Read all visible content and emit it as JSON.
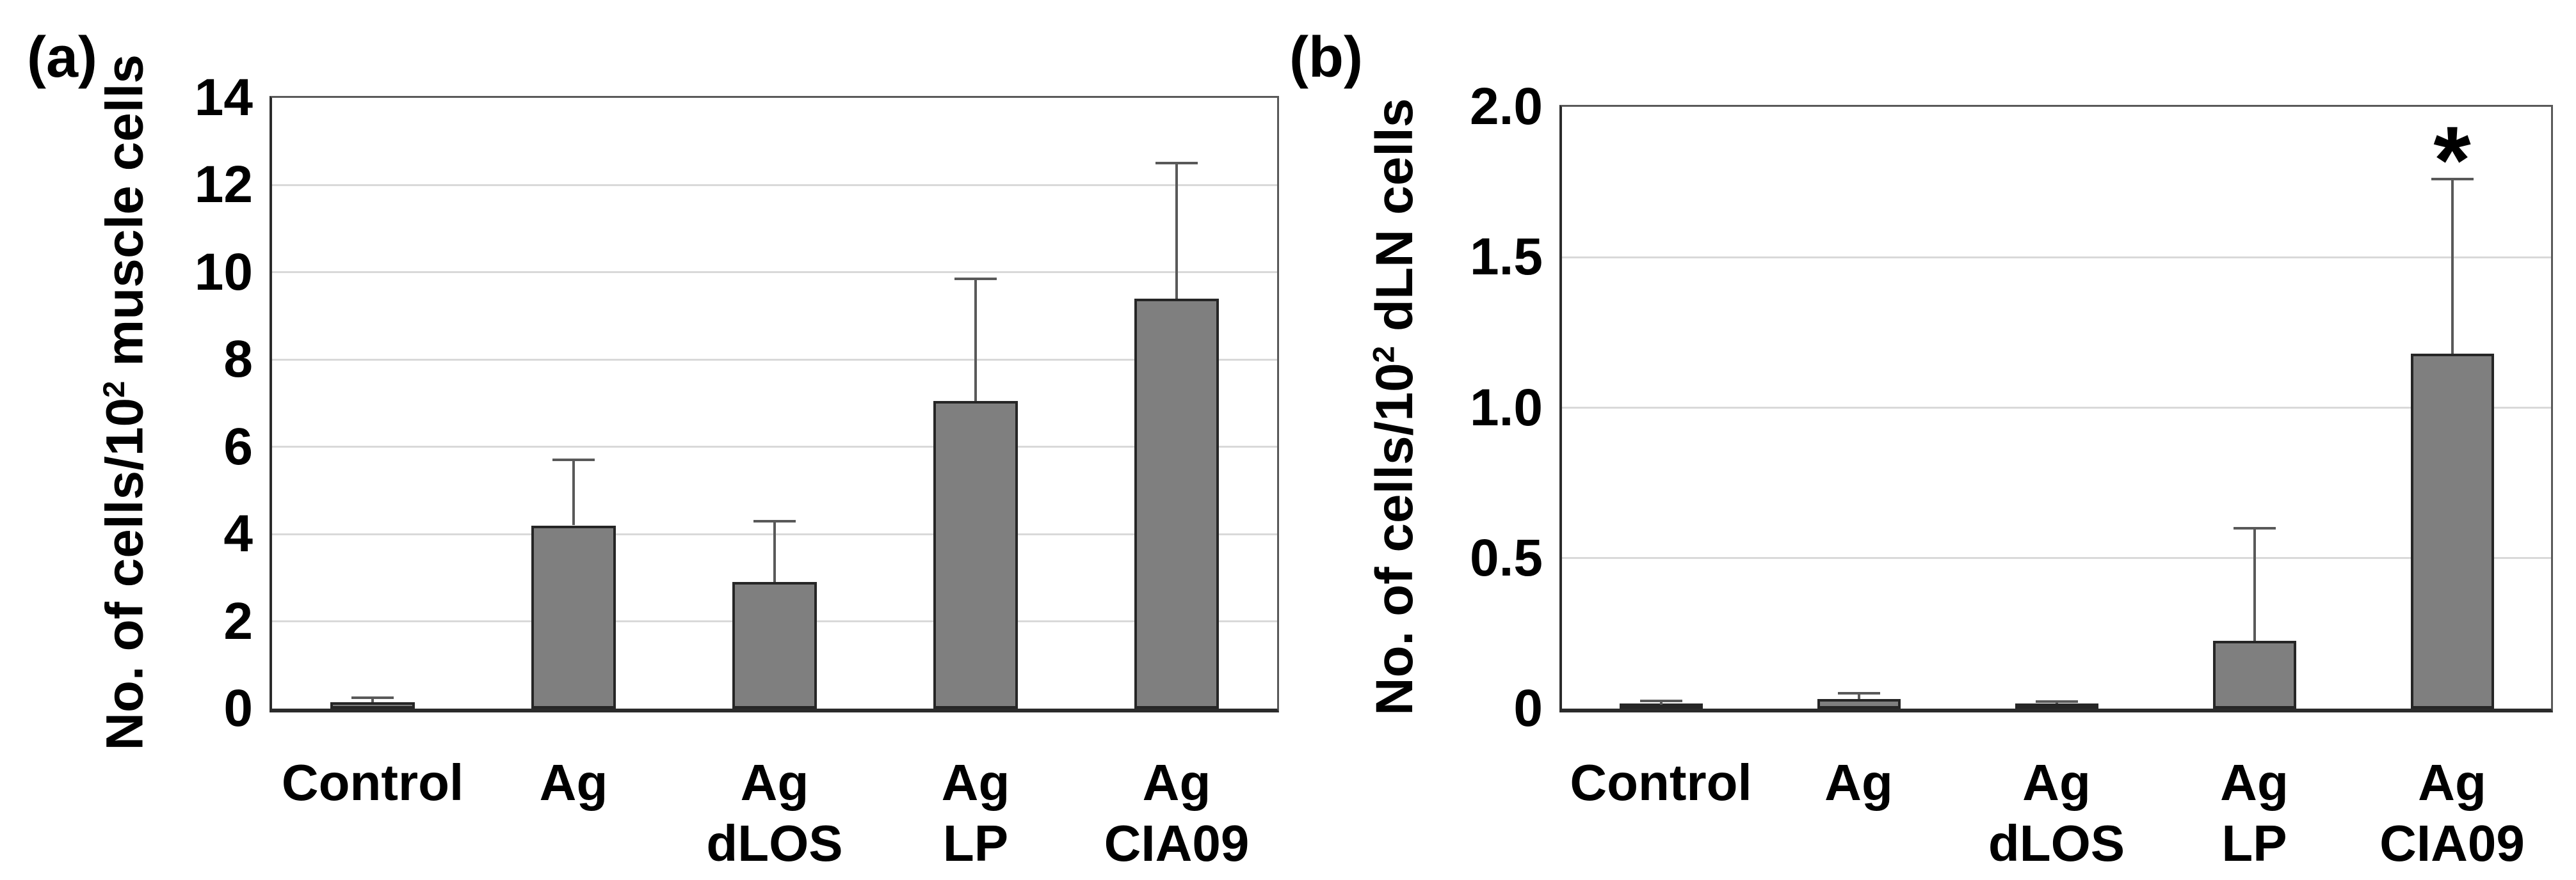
{
  "figure": {
    "background": "#ffffff"
  },
  "style": {
    "bar_fill": "#7f7f7f",
    "bar_border": "#262626",
    "error_color": "#595959",
    "grid_color": "#d9d9d9",
    "frame_color": "#595959",
    "axis_color": "#2b2b2b",
    "text_color": "#000000"
  },
  "chart_data": [
    {
      "id": "a",
      "type": "bar",
      "panel_label": "(a)",
      "ylabel": "No. of cells/10² muscle cells",
      "ylabel_parts": {
        "pre": "No. of cells/10",
        "sup": "2",
        "post": " muscle cells"
      },
      "categories": [
        [
          "Control"
        ],
        [
          "Ag"
        ],
        [
          "Ag",
          "dLOS"
        ],
        [
          "Ag",
          "LP"
        ],
        [
          "Ag",
          "CIA09"
        ]
      ],
      "values": [
        0.15,
        4.2,
        2.9,
        7.05,
        9.4
      ],
      "errors_up": [
        0.1,
        1.5,
        1.4,
        2.8,
        3.1
      ],
      "significance": [
        "",
        "",
        "",
        "",
        ""
      ],
      "ylim": [
        0,
        14
      ],
      "ytick_step": 2,
      "ytick_labels": [
        "0",
        "2",
        "4",
        "6",
        "8",
        "10",
        "12",
        "14"
      ],
      "grid": true,
      "legend": "none",
      "xlabel": ""
    },
    {
      "id": "b",
      "type": "bar",
      "panel_label": "(b)",
      "ylabel": "No. of cells/10² dLN cells",
      "ylabel_parts": {
        "pre": "No. of cells/10",
        "sup": "2",
        "post": " dLN cells"
      },
      "categories": [
        [
          "Control"
        ],
        [
          "Ag"
        ],
        [
          "Ag",
          "dLOS"
        ],
        [
          "Ag",
          "LP"
        ],
        [
          "Ag",
          "CIA09"
        ]
      ],
      "values": [
        0.013,
        0.032,
        0.018,
        0.225,
        1.18
      ],
      "errors_up": [
        0.012,
        0.019,
        0.006,
        0.375,
        0.58
      ],
      "significance": [
        "",
        "",
        "",
        "",
        "*"
      ],
      "ylim": [
        0,
        2
      ],
      "ytick_step": 0.5,
      "ytick_labels": [
        "0",
        "0.5",
        "1.0",
        "1.5",
        "2.0"
      ],
      "grid": true,
      "legend": "none",
      "xlabel": ""
    }
  ]
}
